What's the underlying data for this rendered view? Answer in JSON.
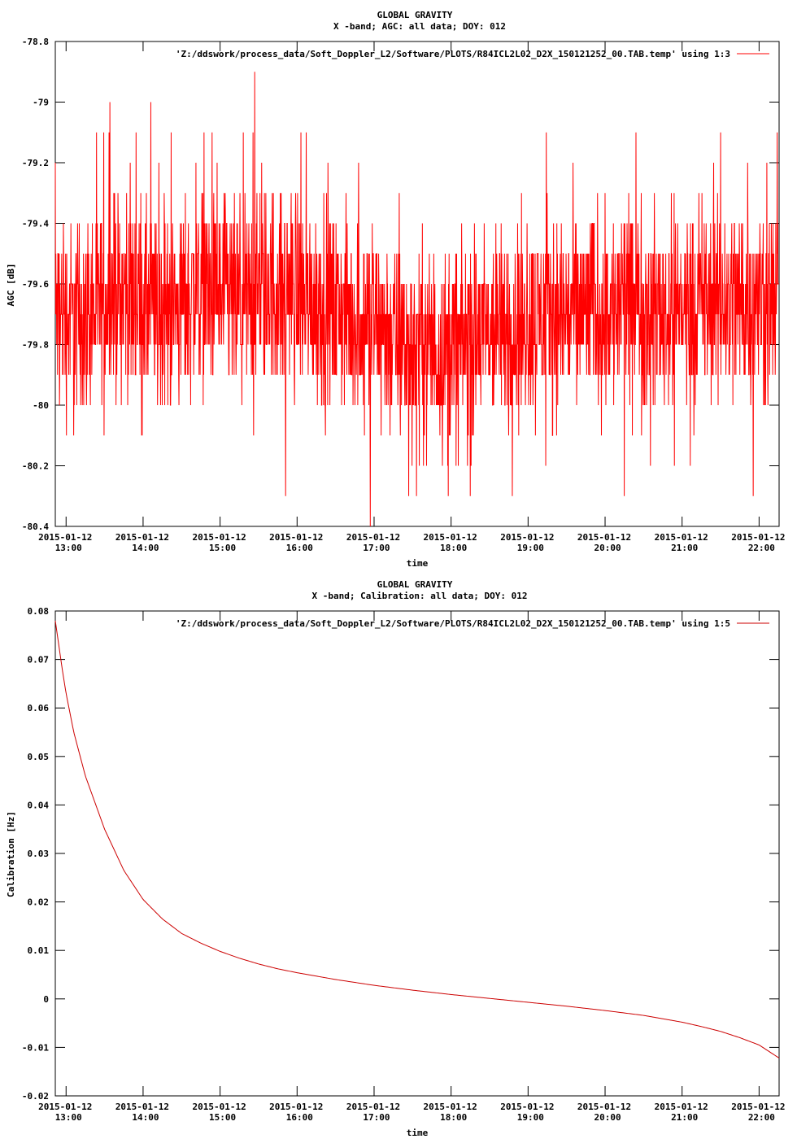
{
  "chart_data": [
    {
      "type": "line",
      "title": "GLOBAL GRAVITY",
      "subtitle": "X -band; AGC: all data; DOY: 012",
      "xlabel": "time",
      "ylabel": "AGC [dB]",
      "legend": "'Z:/ddswork/process_data/Soft_Doppler_L2/Software/PLOTS/R84ICL2L02_D2X_150121252_00.TAB.temp' using 1:3",
      "legend_position": "top-right",
      "series_color": "#ff0000",
      "ylim": [
        -80.4,
        -78.8
      ],
      "yticks": [
        -78.8,
        -79,
        -79.2,
        -79.4,
        -79.6,
        -79.8,
        -80,
        -80.2,
        -80.4
      ],
      "ytick_labels": [
        "-78.8",
        "-79",
        "-79.2",
        "-79.4",
        "-79.6",
        "-79.8",
        "-80",
        "-80.2",
        "-80.4"
      ],
      "xlim_hours": [
        12.86,
        22.26
      ],
      "xticks_hours": [
        13,
        14,
        15,
        16,
        17,
        18,
        19,
        20,
        21,
        22
      ],
      "xtick_labels": [
        [
          "2015-01-12",
          "13:00"
        ],
        [
          "2015-01-12",
          "14:00"
        ],
        [
          "2015-01-12",
          "15:00"
        ],
        [
          "2015-01-12",
          "16:00"
        ],
        [
          "2015-01-12",
          "17:00"
        ],
        [
          "2015-01-12",
          "18:00"
        ],
        [
          "2015-01-12",
          "19:00"
        ],
        [
          "2015-01-12",
          "20:00"
        ],
        [
          "2015-01-12",
          "21:00"
        ],
        [
          "2015-01-12",
          "22:00"
        ]
      ],
      "series": [
        {
          "x_hours": [
            12.86,
            13.0,
            13.25,
            13.5,
            13.75,
            14.0,
            14.25,
            14.5,
            14.75,
            15.0,
            15.25,
            15.5,
            15.75,
            16.0,
            16.25,
            16.5,
            16.75,
            17.0,
            17.25,
            17.5,
            17.75,
            18.0,
            18.25,
            18.5,
            18.75,
            19.0,
            19.25,
            19.5,
            19.75,
            20.0,
            20.25,
            20.5,
            20.75,
            21.0,
            21.25,
            21.5,
            21.75,
            22.0,
            22.26
          ],
          "y_mean": [
            -79.7,
            -79.7,
            -79.72,
            -79.65,
            -79.62,
            -79.68,
            -79.7,
            -79.66,
            -79.6,
            -79.65,
            -79.68,
            -79.62,
            -79.63,
            -79.62,
            -79.66,
            -79.68,
            -79.72,
            -79.73,
            -79.78,
            -79.8,
            -79.82,
            -79.82,
            -79.8,
            -79.76,
            -79.74,
            -79.72,
            -79.7,
            -79.7,
            -79.69,
            -79.68,
            -79.67,
            -79.68,
            -79.69,
            -79.68,
            -79.67,
            -79.66,
            -79.66,
            -79.66,
            -79.66
          ],
          "y_min": -80.4,
          "y_max": -78.9,
          "y_step": 0.1,
          "peaks": [
            [
              12.86,
              -79.2
            ],
            [
              13.57,
              -79.0
            ],
            [
              14.1,
              -79.0
            ],
            [
              15.45,
              -78.9
            ],
            [
              16.05,
              -79.1
            ],
            [
              20.4,
              -79.1
            ],
            [
              21.5,
              -79.1
            ],
            [
              21.85,
              -79.2
            ],
            [
              22.1,
              -79.2
            ]
          ],
          "troughs": [
            [
              13.1,
              -80.1
            ],
            [
              15.85,
              -80.3
            ],
            [
              16.95,
              -80.4
            ],
            [
              17.45,
              -80.3
            ],
            [
              17.55,
              -80.3
            ],
            [
              18.25,
              -80.3
            ],
            [
              20.25,
              -80.3
            ],
            [
              20.9,
              -80.2
            ]
          ]
        }
      ]
    },
    {
      "type": "line",
      "title": "GLOBAL GRAVITY",
      "subtitle": "X -band; Calibration: all data; DOY: 012",
      "xlabel": "time",
      "ylabel": "Calibration [Hz]",
      "legend": "'Z:/ddswork/process_data/Soft_Doppler_L2/Software/PLOTS/R84ICL2L02_D2X_150121252_00.TAB.temp' using 1:5",
      "legend_position": "top-right",
      "series_color": "#cc0000",
      "ylim": [
        -0.02,
        0.08
      ],
      "yticks": [
        0.08,
        0.07,
        0.06,
        0.05,
        0.04,
        0.03,
        0.02,
        0.01,
        0,
        -0.01,
        -0.02
      ],
      "ytick_labels": [
        "0.08",
        "0.07",
        "0.06",
        "0.05",
        "0.04",
        "0.03",
        "0.02",
        "0.01",
        "0",
        "-0.01",
        "-0.02"
      ],
      "xlim_hours": [
        12.86,
        22.26
      ],
      "xticks_hours": [
        13,
        14,
        15,
        16,
        17,
        18,
        19,
        20,
        21,
        22
      ],
      "xtick_labels": [
        [
          "2015-01-12",
          "13:00"
        ],
        [
          "2015-01-12",
          "14:00"
        ],
        [
          "2015-01-12",
          "15:00"
        ],
        [
          "2015-01-12",
          "16:00"
        ],
        [
          "2015-01-12",
          "17:00"
        ],
        [
          "2015-01-12",
          "18:00"
        ],
        [
          "2015-01-12",
          "19:00"
        ],
        [
          "2015-01-12",
          "20:00"
        ],
        [
          "2015-01-12",
          "21:00"
        ],
        [
          "2015-01-12",
          "22:00"
        ]
      ],
      "series": [
        {
          "x_hours": [
            12.86,
            12.95,
            13.0,
            13.1,
            13.25,
            13.5,
            13.75,
            14.0,
            14.25,
            14.5,
            14.75,
            15.0,
            15.25,
            15.5,
            15.75,
            16.0,
            16.5,
            17.0,
            17.5,
            18.0,
            18.5,
            19.0,
            19.5,
            20.0,
            20.5,
            21.0,
            21.25,
            21.5,
            21.75,
            22.0,
            22.26
          ],
          "y": [
            0.078,
            0.068,
            0.063,
            0.055,
            0.046,
            0.035,
            0.0265,
            0.0205,
            0.0165,
            0.0135,
            0.0115,
            0.0098,
            0.0084,
            0.0072,
            0.0062,
            0.0054,
            0.004,
            0.0028,
            0.0018,
            0.0009,
            0.0001,
            -0.0007,
            -0.0015,
            -0.0024,
            -0.0034,
            -0.0048,
            -0.0057,
            -0.0067,
            -0.008,
            -0.0095,
            -0.0122
          ]
        }
      ]
    }
  ]
}
